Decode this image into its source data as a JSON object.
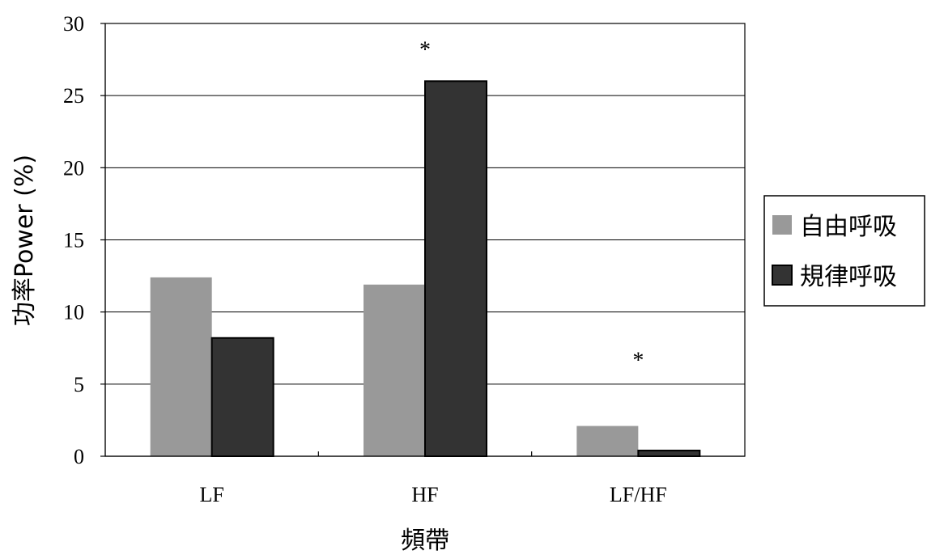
{
  "chart_data": {
    "type": "bar",
    "categories": [
      "LF",
      "HF",
      "LF/HF"
    ],
    "series": [
      {
        "name": "自由呼吸",
        "values": [
          12.4,
          11.9,
          2.1
        ],
        "color": "#999999"
      },
      {
        "name": "規律呼吸",
        "values": [
          8.2,
          26.0,
          0.4
        ],
        "color": "#333333"
      }
    ],
    "xlabel": "頻帶",
    "ylabel": "功率Power (%)",
    "ylim": [
      0,
      30
    ],
    "yticks": [
      0,
      5,
      10,
      15,
      20,
      25,
      30
    ],
    "grid": true,
    "legend": "right",
    "annotations": [
      {
        "category": "HF",
        "text": "*"
      },
      {
        "category": "LF/HF",
        "text": "*"
      }
    ]
  }
}
